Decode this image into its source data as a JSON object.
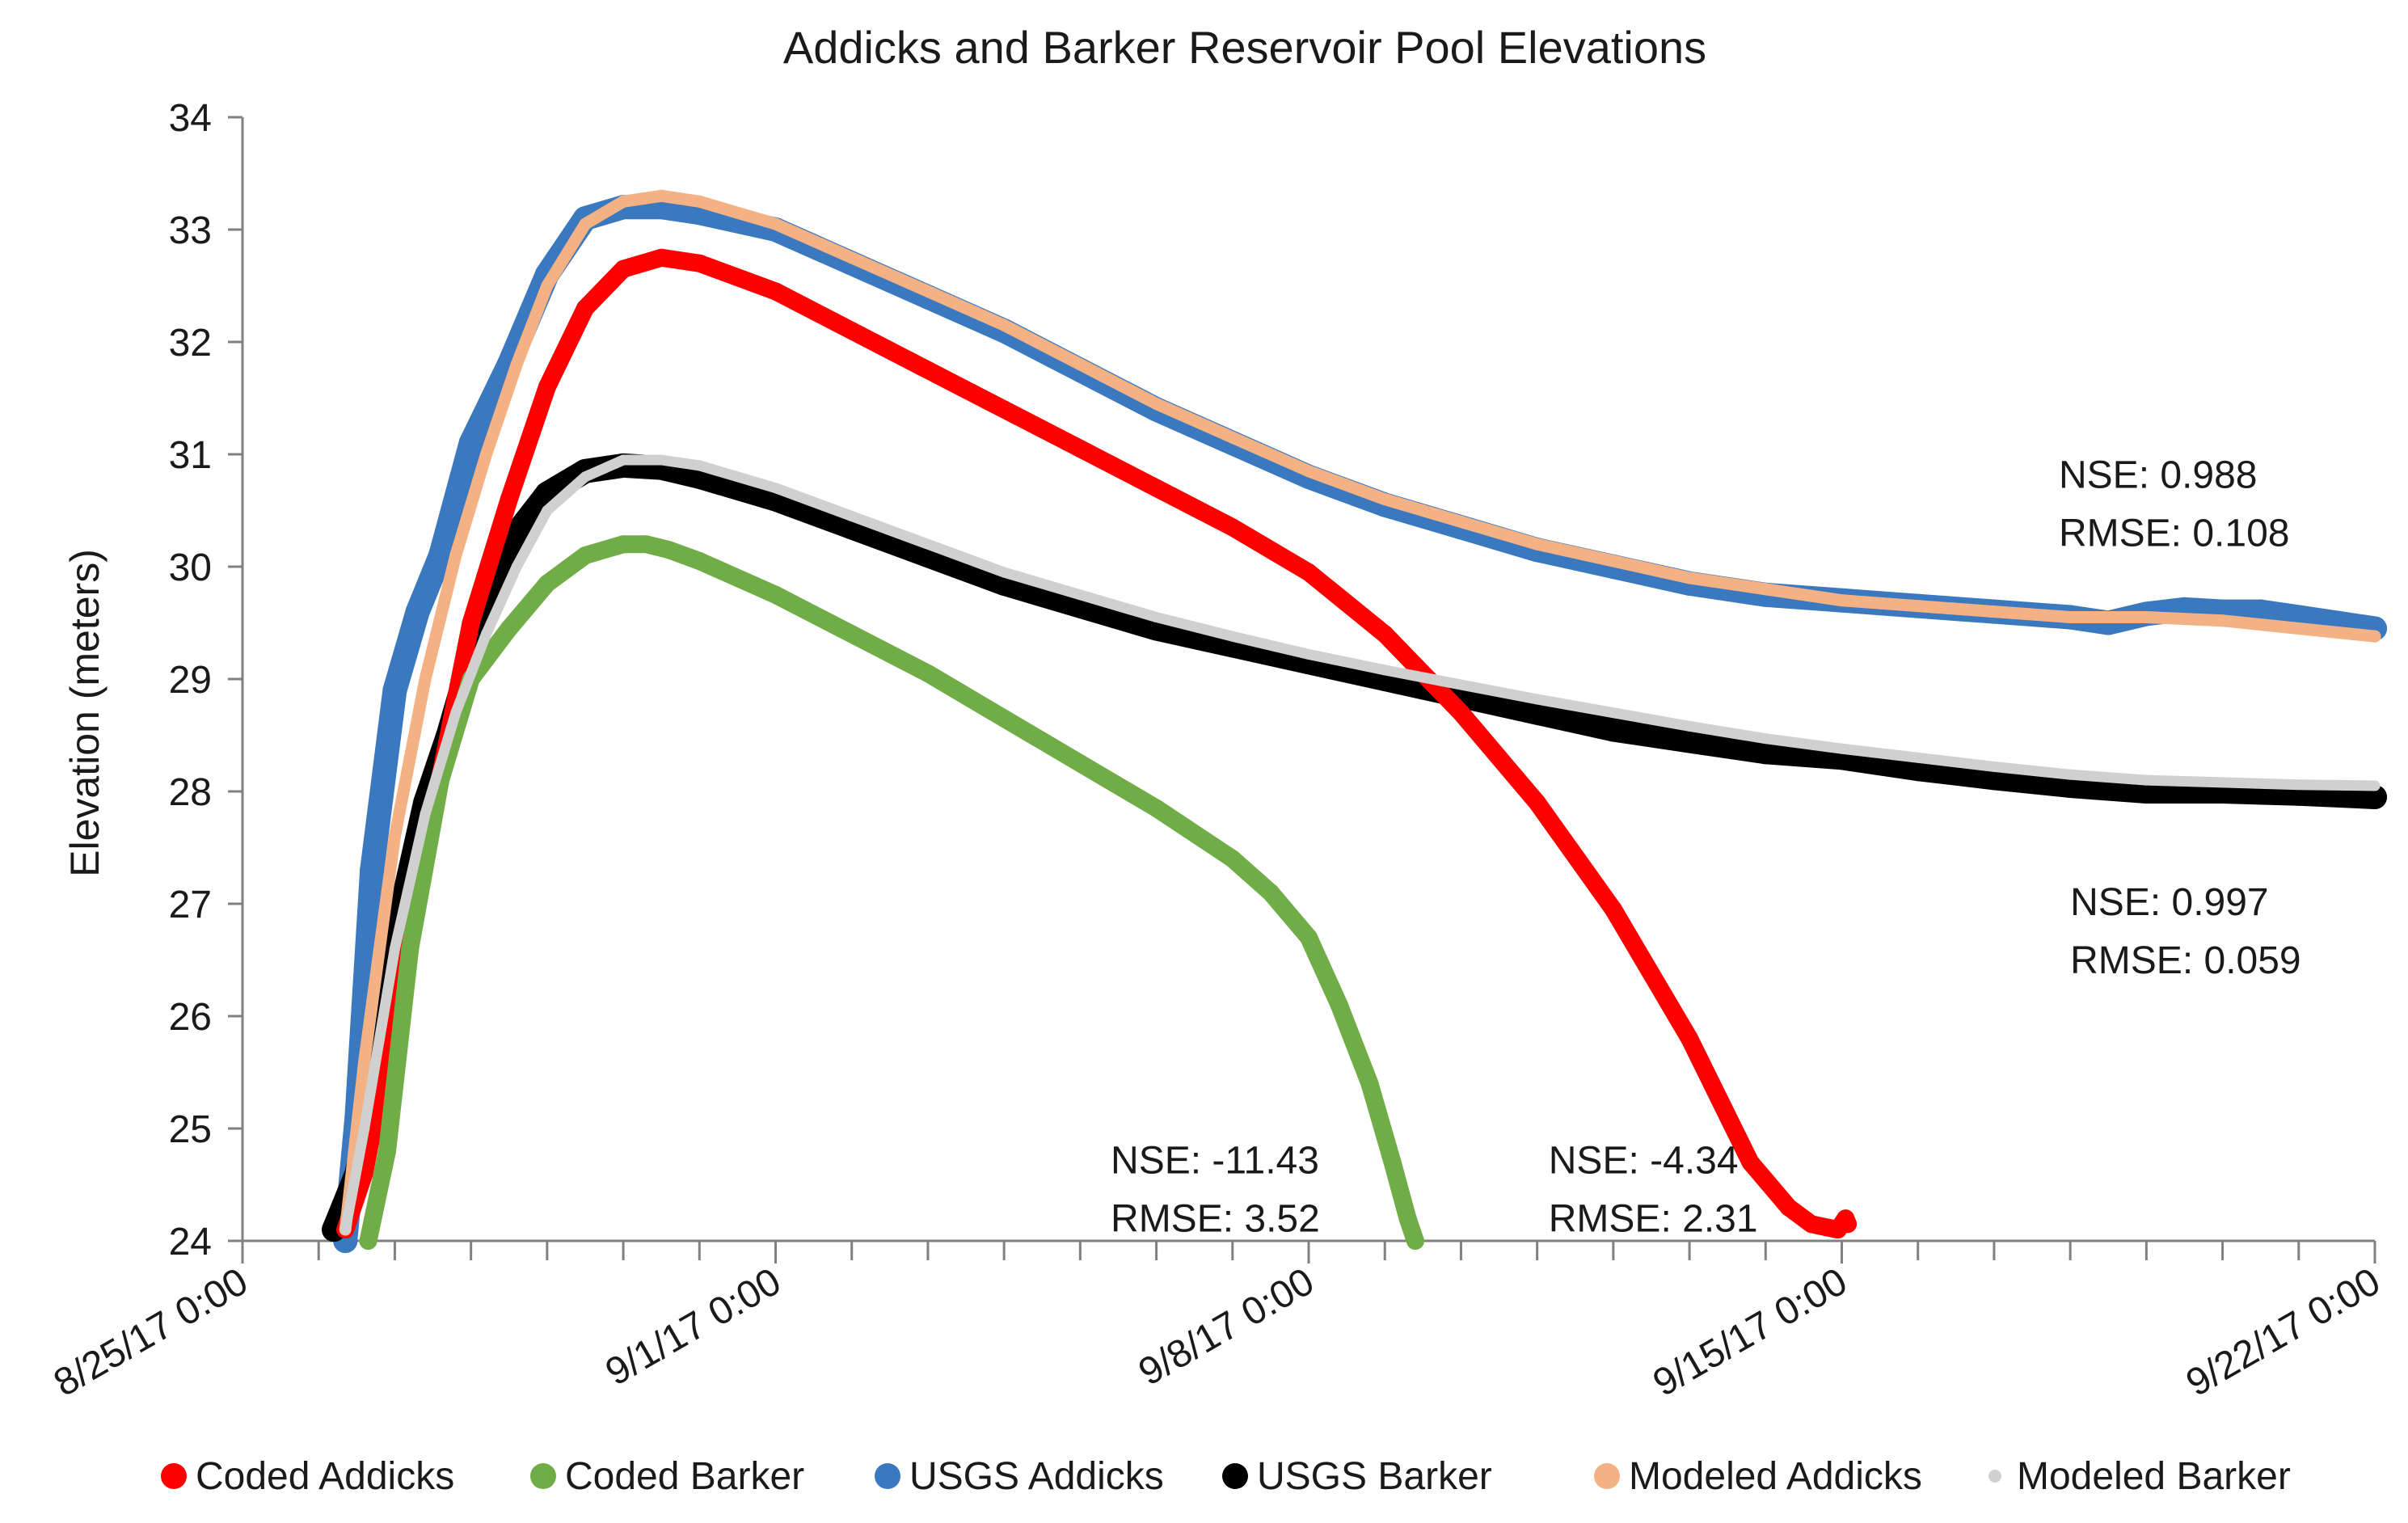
{
  "chart_data": {
    "type": "line",
    "title": "Addicks and Barker Reservoir Pool Elevations",
    "xlabel": "",
    "ylabel": "Elevation (meters)",
    "ylim": [
      24,
      34
    ],
    "y_ticks": [
      "24",
      "25",
      "26",
      "27",
      "28",
      "29",
      "30",
      "31",
      "32",
      "33",
      "34"
    ],
    "xlim_days": [
      0,
      28
    ],
    "x_ticks": [
      {
        "day": 0,
        "label": "8/25/17 0:00"
      },
      {
        "day": 7,
        "label": "9/1/17 0:00"
      },
      {
        "day": 14,
        "label": "9/8/17 0:00"
      },
      {
        "day": 21,
        "label": "9/15/17 0:00"
      },
      {
        "day": 28,
        "label": "9/22/17 0:00"
      }
    ],
    "legend_position": "bottom",
    "series": [
      {
        "name": "Coded Addicks",
        "color": "#ff0000",
        "width": 22,
        "x": [
          1.35,
          1.6,
          2.0,
          2.5,
          3.0,
          3.5,
          4.0,
          4.5,
          5.0,
          5.5,
          6.0,
          7.0,
          8.0,
          9.0,
          10.0,
          11.0,
          12.0,
          13.0,
          14.0,
          15.0,
          16.0,
          17.0,
          18.0,
          19.0,
          19.8,
          20.3,
          20.6,
          20.8,
          20.95,
          21.05,
          21.08
        ],
        "y": [
          24.1,
          24.6,
          26.0,
          27.8,
          29.5,
          30.6,
          31.6,
          32.3,
          32.65,
          32.75,
          32.7,
          32.45,
          32.1,
          31.75,
          31.4,
          31.05,
          30.7,
          30.35,
          29.95,
          29.4,
          28.7,
          27.9,
          26.95,
          25.8,
          24.7,
          24.3,
          24.15,
          24.12,
          24.1,
          24.2,
          24.15
        ]
      },
      {
        "name": "Coded Barker",
        "color": "#70ad47",
        "width": 22,
        "x": [
          1.65,
          1.9,
          2.2,
          2.6,
          3.0,
          3.5,
          4.0,
          4.5,
          5.0,
          5.3,
          5.6,
          6.0,
          7.0,
          8.0,
          9.0,
          10.0,
          11.0,
          12.0,
          13.0,
          13.5,
          14.0,
          14.4,
          14.8,
          15.1,
          15.3,
          15.4
        ],
        "y": [
          24.0,
          24.8,
          26.6,
          28.1,
          29.0,
          29.45,
          29.85,
          30.1,
          30.2,
          30.2,
          30.15,
          30.05,
          29.75,
          29.4,
          29.05,
          28.65,
          28.25,
          27.85,
          27.4,
          27.1,
          26.7,
          26.1,
          25.4,
          24.7,
          24.2,
          24.0
        ]
      },
      {
        "name": "USGS Addicks",
        "color": "#3a78c0",
        "width": 30,
        "x": [
          1.35,
          1.5,
          1.7,
          2.0,
          2.3,
          2.6,
          3.0,
          3.5,
          4.0,
          4.5,
          5.0,
          5.5,
          6.0,
          7.0,
          8.0,
          9.0,
          10.0,
          11.0,
          12.0,
          13.0,
          14.0,
          15.0,
          16.0,
          17.0,
          18.0,
          19.0,
          20.0,
          21.0,
          22.0,
          23.0,
          24.0,
          24.5,
          25.0,
          25.5,
          26.0,
          26.5,
          27.0,
          27.5,
          28.0
        ],
        "y": [
          24.0,
          25.1,
          27.3,
          28.9,
          29.6,
          30.1,
          31.1,
          31.8,
          32.6,
          33.1,
          33.2,
          33.2,
          33.15,
          33.0,
          32.7,
          32.4,
          32.1,
          31.75,
          31.4,
          31.1,
          30.8,
          30.55,
          30.35,
          30.15,
          30.0,
          29.85,
          29.75,
          29.7,
          29.65,
          29.6,
          29.55,
          29.5,
          29.58,
          29.62,
          29.6,
          29.6,
          29.55,
          29.5,
          29.45
        ]
      },
      {
        "name": "USGS Barker",
        "color": "#000000",
        "width": 30,
        "x": [
          1.2,
          1.5,
          1.8,
          2.1,
          2.4,
          2.7,
          3.0,
          3.3,
          3.6,
          4.0,
          4.5,
          5.0,
          5.5,
          6.0,
          7.0,
          8.0,
          9.0,
          10.0,
          11.0,
          12.0,
          13.0,
          14.0,
          15.0,
          16.0,
          17.0,
          18.0,
          19.0,
          20.0,
          21.0,
          22.0,
          23.0,
          24.0,
          25.0,
          26.0,
          27.0,
          28.0
        ],
        "y": [
          24.1,
          24.6,
          25.6,
          27.0,
          27.9,
          28.5,
          29.2,
          29.9,
          30.3,
          30.65,
          30.85,
          30.9,
          30.88,
          30.8,
          30.6,
          30.35,
          30.1,
          29.85,
          29.65,
          29.45,
          29.3,
          29.15,
          29.0,
          28.85,
          28.7,
          28.55,
          28.45,
          28.35,
          28.3,
          28.2,
          28.12,
          28.05,
          28.0,
          28.0,
          27.98,
          27.95
        ]
      },
      {
        "name": "Modeled Addicks",
        "color": "#f4b183",
        "width": 15,
        "x": [
          1.35,
          1.6,
          2.0,
          2.4,
          2.8,
          3.2,
          3.6,
          4.0,
          4.5,
          5.0,
          5.5,
          6.0,
          7.0,
          8.0,
          9.0,
          10.0,
          11.0,
          12.0,
          13.0,
          14.0,
          15.0,
          16.0,
          17.0,
          18.0,
          19.0,
          20.0,
          21.0,
          22.0,
          23.0,
          24.0,
          25.0,
          26.0,
          27.0,
          28.0
        ],
        "y": [
          24.1,
          25.6,
          27.6,
          29.0,
          30.1,
          31.0,
          31.8,
          32.5,
          33.05,
          33.25,
          33.3,
          33.25,
          33.05,
          32.75,
          32.45,
          32.15,
          31.8,
          31.45,
          31.15,
          30.85,
          30.6,
          30.4,
          30.2,
          30.05,
          29.9,
          29.8,
          29.7,
          29.65,
          29.6,
          29.55,
          29.55,
          29.52,
          29.45,
          29.38
        ]
      },
      {
        "name": "Modeled Barker",
        "color": "#d0d0d0",
        "width": 13,
        "x": [
          1.35,
          1.6,
          2.0,
          2.4,
          2.8,
          3.2,
          3.6,
          4.0,
          4.5,
          5.0,
          5.5,
          6.0,
          7.0,
          8.0,
          9.0,
          10.0,
          11.0,
          12.0,
          13.0,
          14.0,
          15.0,
          16.0,
          17.0,
          18.0,
          19.0,
          20.0,
          21.0,
          22.0,
          23.0,
          24.0,
          25.0,
          26.0,
          27.0,
          28.0
        ],
        "y": [
          24.1,
          25.0,
          26.6,
          27.8,
          28.7,
          29.4,
          30.0,
          30.5,
          30.8,
          30.95,
          30.95,
          30.9,
          30.7,
          30.45,
          30.2,
          29.95,
          29.75,
          29.55,
          29.38,
          29.22,
          29.08,
          28.95,
          28.82,
          28.7,
          28.58,
          28.47,
          28.38,
          28.3,
          28.22,
          28.15,
          28.1,
          28.08,
          28.06,
          28.05
        ]
      }
    ],
    "annotations": [
      {
        "id": "addicks-model",
        "lines": [
          "NSE: 0.988",
          "RMSE: 0.108"
        ],
        "day": 23.85,
        "y": 30.7
      },
      {
        "id": "barker-model",
        "lines": [
          "NSE: 0.997",
          "RMSE: 0.059"
        ],
        "day": 24.0,
        "y": 26.9
      },
      {
        "id": "coded-barker",
        "lines": [
          "NSE: -11.43",
          "RMSE: 3.52"
        ],
        "day": 11.4,
        "y": 24.6
      },
      {
        "id": "coded-addicks",
        "lines": [
          "NSE: -4.34",
          "RMSE: 2.31"
        ],
        "day": 17.15,
        "y": 24.6
      }
    ]
  }
}
